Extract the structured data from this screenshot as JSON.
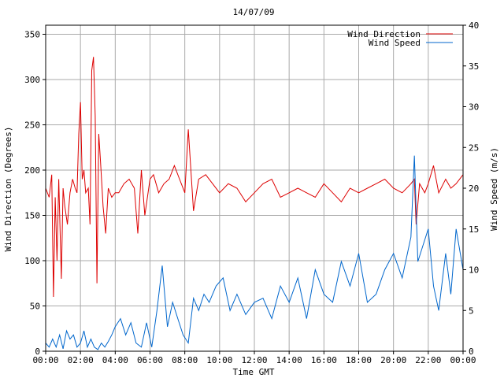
{
  "chart_data": {
    "type": "line",
    "title": "14/07/09",
    "xlabel": "Time GMT",
    "ylabel_left": "Wind Direction (Degrees)",
    "ylabel_right": "Wind Speed (m/s)",
    "x_ticks": [
      "00:00",
      "02:00",
      "04:00",
      "06:00",
      "08:00",
      "10:00",
      "12:00",
      "14:00",
      "16:00",
      "18:00",
      "20:00",
      "22:00",
      "00:00"
    ],
    "x_range_hours": [
      0,
      24
    ],
    "ylim_left": [
      0,
      360
    ],
    "y_ticks_left": [
      0,
      50,
      100,
      150,
      200,
      250,
      300,
      350
    ],
    "ylim_right": [
      0,
      40
    ],
    "y_ticks_right": [
      0,
      5,
      10,
      15,
      20,
      25,
      30,
      35,
      40
    ],
    "grid": true,
    "legend_position": "top-right",
    "series": [
      {
        "name": "Wind Direction",
        "axis": "left",
        "color": "#dd0000",
        "x": [
          0,
          0.2,
          0.35,
          0.45,
          0.55,
          0.65,
          0.75,
          0.9,
          1.0,
          1.1,
          1.25,
          1.4,
          1.55,
          1.7,
          1.8,
          1.9,
          2.0,
          2.1,
          2.2,
          2.3,
          2.45,
          2.55,
          2.65,
          2.75,
          2.85,
          2.95,
          3.05,
          3.15,
          3.3,
          3.45,
          3.6,
          3.8,
          4.0,
          4.2,
          4.5,
          4.8,
          5.1,
          5.3,
          5.5,
          5.7,
          6.0,
          6.2,
          6.5,
          6.8,
          7.1,
          7.4,
          7.7,
          8.0,
          8.2,
          8.5,
          8.8,
          9.2,
          9.6,
          10.0,
          10.5,
          11.0,
          11.5,
          12.0,
          12.5,
          13.0,
          13.5,
          14.0,
          14.5,
          15.0,
          15.5,
          16.0,
          16.5,
          17.0,
          17.5,
          18.0,
          18.5,
          19.0,
          19.5,
          20.0,
          20.5,
          21.0,
          21.2,
          21.3,
          21.5,
          21.8,
          22.0,
          22.3,
          22.6,
          23.0,
          23.3,
          23.6,
          24.0
        ],
        "values": [
          180,
          170,
          195,
          60,
          170,
          100,
          190,
          80,
          180,
          160,
          140,
          175,
          190,
          180,
          175,
          240,
          275,
          190,
          200,
          175,
          180,
          140,
          310,
          325,
          260,
          75,
          240,
          210,
          160,
          130,
          180,
          170,
          175,
          175,
          185,
          190,
          180,
          130,
          200,
          150,
          190,
          195,
          175,
          185,
          190,
          205,
          190,
          175,
          245,
          155,
          190,
          195,
          185,
          175,
          185,
          180,
          165,
          175,
          185,
          190,
          170,
          175,
          180,
          175,
          170,
          185,
          175,
          165,
          180,
          175,
          180,
          185,
          190,
          180,
          175,
          185,
          190,
          140,
          185,
          175,
          185,
          205,
          175,
          190,
          180,
          185,
          195
        ]
      },
      {
        "name": "Wind Speed",
        "axis": "right",
        "color": "#0066cc",
        "x": [
          0,
          0.2,
          0.4,
          0.6,
          0.8,
          1.0,
          1.2,
          1.4,
          1.6,
          1.8,
          2.0,
          2.2,
          2.4,
          2.6,
          2.8,
          3.0,
          3.2,
          3.4,
          3.6,
          3.8,
          4.0,
          4.3,
          4.6,
          4.9,
          5.2,
          5.5,
          5.8,
          6.1,
          6.4,
          6.7,
          7.0,
          7.3,
          7.6,
          7.9,
          8.2,
          8.5,
          8.8,
          9.1,
          9.4,
          9.8,
          10.2,
          10.6,
          11.0,
          11.5,
          12.0,
          12.5,
          13.0,
          13.5,
          14.0,
          14.5,
          15.0,
          15.5,
          16.0,
          16.5,
          17.0,
          17.5,
          18.0,
          18.5,
          19.0,
          19.5,
          20.0,
          20.5,
          21.0,
          21.2,
          21.4,
          21.7,
          22.0,
          22.3,
          22.6,
          23.0,
          23.3,
          23.6,
          24.0
        ],
        "values": [
          1,
          0.5,
          1.5,
          0.5,
          2,
          0.3,
          2.5,
          1.5,
          2,
          0.5,
          1,
          2.5,
          0.5,
          1.5,
          0.5,
          0.2,
          1,
          0.5,
          1.2,
          2,
          3,
          4,
          2,
          3.5,
          1,
          0.5,
          3.5,
          0.5,
          5,
          10.5,
          3,
          6,
          4,
          2,
          1,
          6.5,
          5,
          7,
          6,
          8,
          9,
          5,
          7,
          4.5,
          6,
          6.5,
          4,
          8,
          6,
          9,
          4,
          10,
          7,
          6,
          11,
          8,
          12,
          6,
          7,
          10,
          12,
          9,
          14,
          24,
          11,
          13,
          15,
          8,
          5,
          12,
          7,
          15,
          10
        ]
      }
    ]
  }
}
